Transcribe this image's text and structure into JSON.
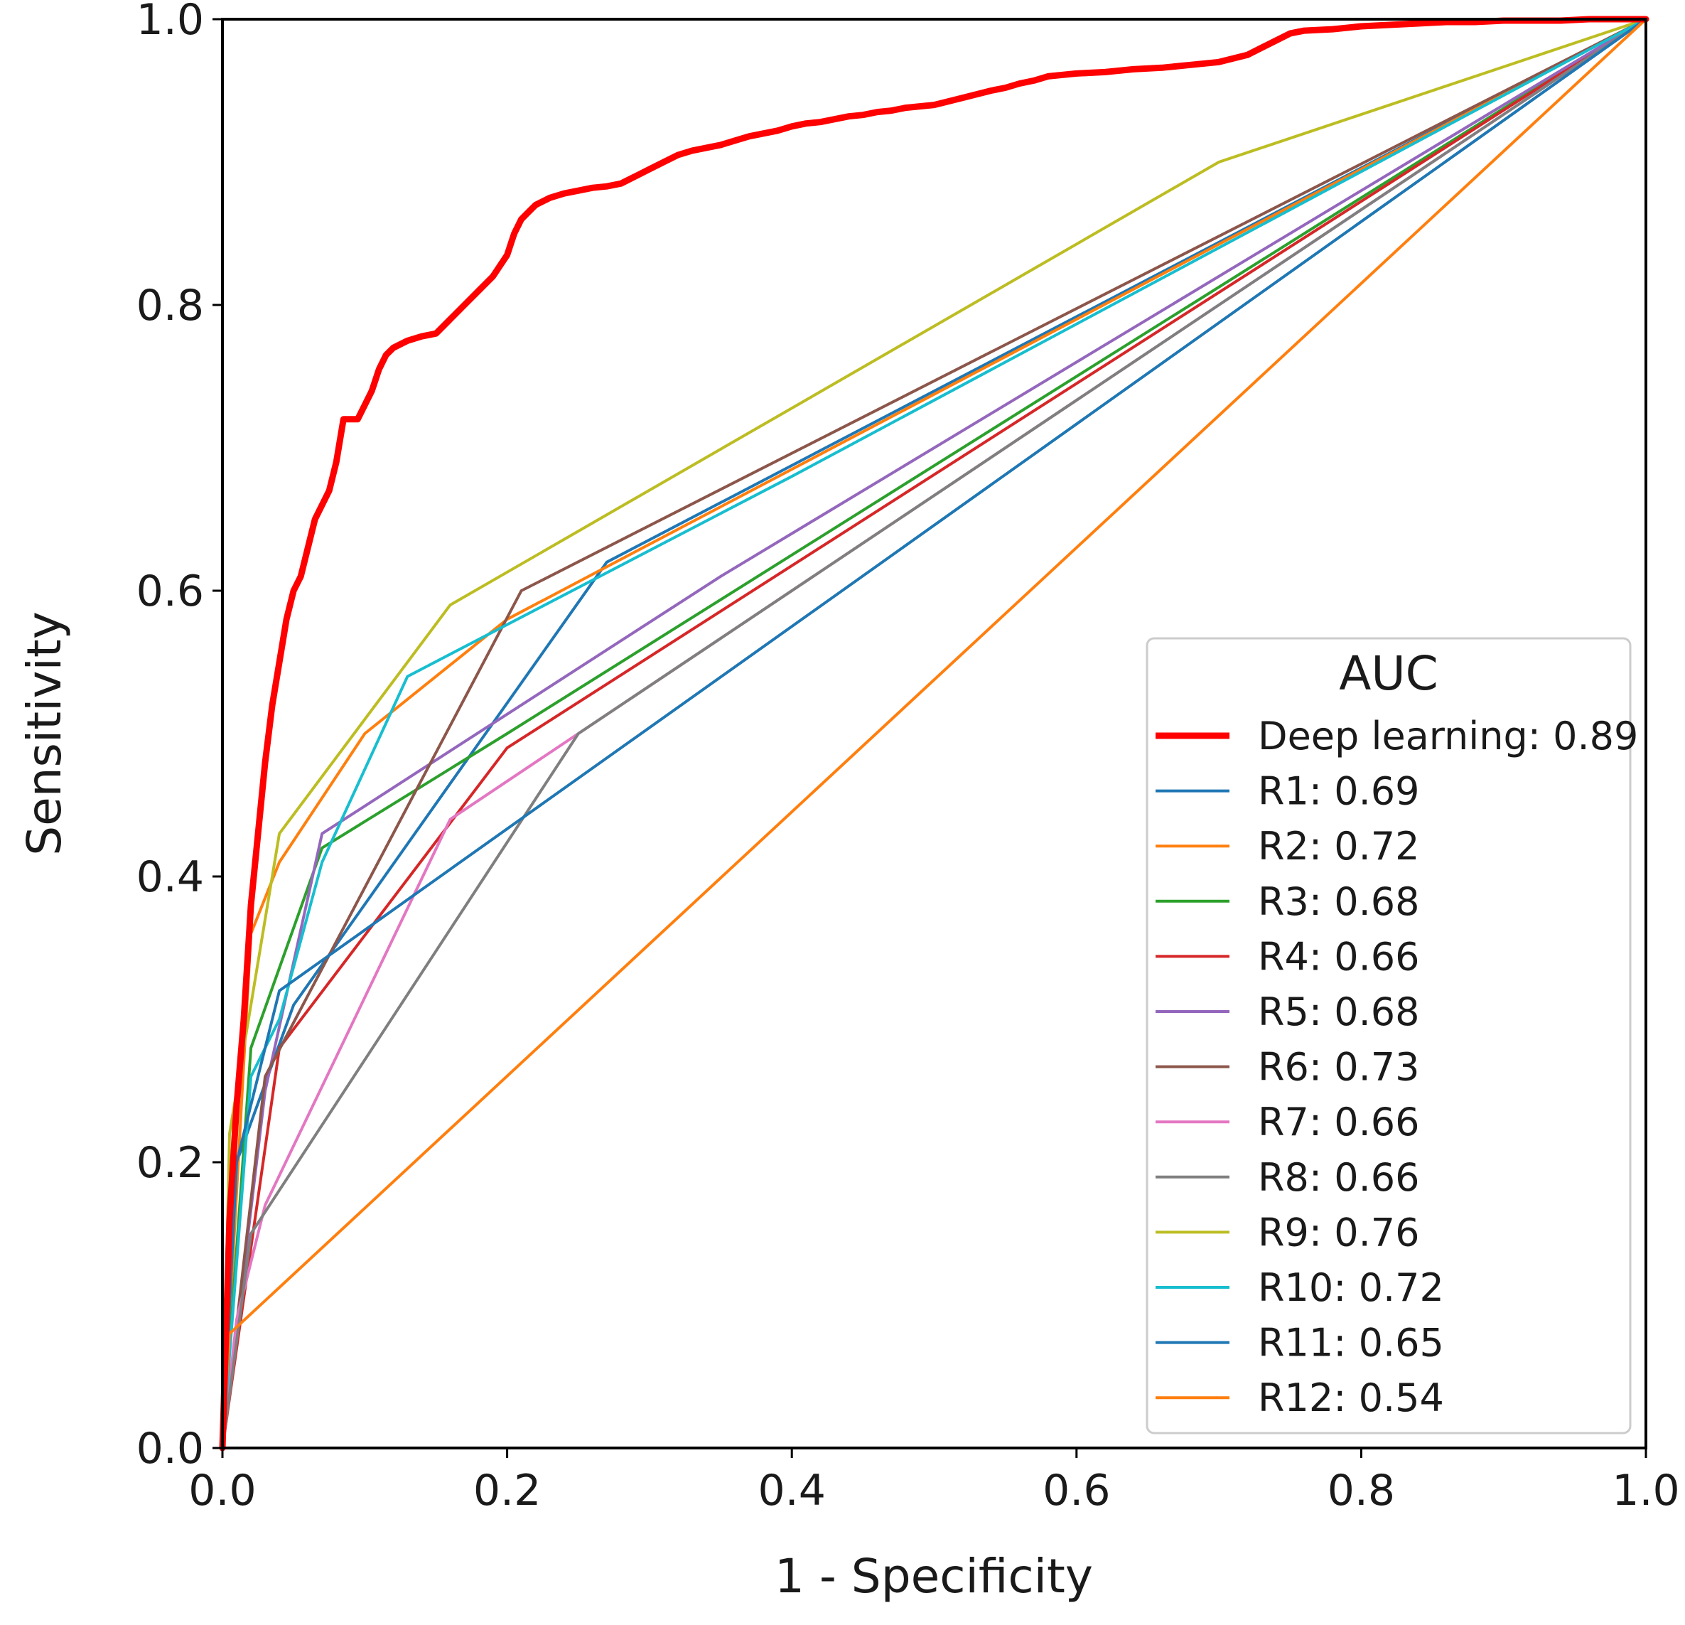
{
  "chart_data": {
    "type": "line",
    "title": "",
    "xlabel": "1 - Specificity",
    "ylabel": "Sensitivity",
    "xlim": [
      0.0,
      1.0
    ],
    "ylim": [
      0.0,
      1.0
    ],
    "x_ticks": [
      "0.0",
      "0.2",
      "0.4",
      "0.6",
      "0.8",
      "1.0"
    ],
    "y_ticks": [
      "0.0",
      "0.2",
      "0.4",
      "0.6",
      "0.8",
      "1.0"
    ],
    "grid": false,
    "legend": {
      "title": "AUC",
      "location": "lower right"
    },
    "series": [
      {
        "name": "Deep learning",
        "auc": "0.89",
        "label": "Deep learning: 0.89",
        "color": "#ff0000",
        "thick": true,
        "x": [
          0.0,
          0.005,
          0.01,
          0.015,
          0.02,
          0.025,
          0.03,
          0.035,
          0.04,
          0.045,
          0.05,
          0.055,
          0.06,
          0.065,
          0.07,
          0.075,
          0.08,
          0.085,
          0.09,
          0.095,
          0.1,
          0.105,
          0.11,
          0.115,
          0.12,
          0.13,
          0.14,
          0.15,
          0.16,
          0.17,
          0.18,
          0.19,
          0.2,
          0.205,
          0.21,
          0.215,
          0.22,
          0.23,
          0.24,
          0.25,
          0.26,
          0.27,
          0.28,
          0.29,
          0.3,
          0.31,
          0.32,
          0.33,
          0.34,
          0.35,
          0.36,
          0.37,
          0.38,
          0.39,
          0.4,
          0.41,
          0.42,
          0.43,
          0.44,
          0.45,
          0.46,
          0.47,
          0.48,
          0.5,
          0.52,
          0.54,
          0.55,
          0.56,
          0.57,
          0.58,
          0.6,
          0.62,
          0.64,
          0.66,
          0.68,
          0.7,
          0.72,
          0.73,
          0.74,
          0.75,
          0.76,
          0.78,
          0.8,
          0.82,
          0.84,
          0.86,
          0.88,
          0.9,
          0.92,
          0.94,
          0.96,
          0.98,
          1.0
        ],
        "y": [
          0.0,
          0.16,
          0.24,
          0.3,
          0.38,
          0.43,
          0.48,
          0.52,
          0.55,
          0.58,
          0.6,
          0.61,
          0.63,
          0.65,
          0.66,
          0.67,
          0.69,
          0.72,
          0.72,
          0.72,
          0.73,
          0.74,
          0.755,
          0.765,
          0.77,
          0.775,
          0.778,
          0.78,
          0.79,
          0.8,
          0.81,
          0.82,
          0.835,
          0.85,
          0.86,
          0.865,
          0.87,
          0.875,
          0.878,
          0.88,
          0.882,
          0.883,
          0.885,
          0.89,
          0.895,
          0.9,
          0.905,
          0.908,
          0.91,
          0.912,
          0.915,
          0.918,
          0.92,
          0.922,
          0.925,
          0.927,
          0.928,
          0.93,
          0.932,
          0.933,
          0.935,
          0.936,
          0.938,
          0.94,
          0.945,
          0.95,
          0.952,
          0.955,
          0.957,
          0.96,
          0.962,
          0.963,
          0.965,
          0.966,
          0.968,
          0.97,
          0.975,
          0.98,
          0.985,
          0.99,
          0.992,
          0.993,
          0.995,
          0.996,
          0.997,
          0.998,
          0.998,
          0.999,
          0.999,
          0.999,
          1.0,
          1.0,
          1.0
        ]
      },
      {
        "name": "R1",
        "auc": "0.69",
        "label": "R1: 0.69",
        "color": "#1f77b4",
        "x": [
          0.0,
          0.01,
          0.05,
          0.27,
          1.0
        ],
        "y": [
          0.0,
          0.2,
          0.31,
          0.62,
          1.0
        ]
      },
      {
        "name": "R2",
        "auc": "0.72",
        "label": "R2: 0.72",
        "color": "#ff7f0e",
        "x": [
          0.0,
          0.02,
          0.04,
          0.1,
          0.2,
          1.0
        ],
        "y": [
          0.0,
          0.36,
          0.41,
          0.5,
          0.58,
          1.0
        ]
      },
      {
        "name": "R3",
        "auc": "0.68",
        "label": "R3: 0.68",
        "color": "#2ca02c",
        "x": [
          0.0,
          0.02,
          0.07,
          0.2,
          1.0
        ],
        "y": [
          0.0,
          0.28,
          0.42,
          0.5,
          1.0
        ]
      },
      {
        "name": "R4",
        "auc": "0.66",
        "label": "R4: 0.66",
        "color": "#d62728",
        "x": [
          0.0,
          0.04,
          0.2,
          1.0
        ],
        "y": [
          0.0,
          0.28,
          0.49,
          1.0
        ]
      },
      {
        "name": "R5",
        "auc": "0.68",
        "label": "R5: 0.68",
        "color": "#9467bd",
        "x": [
          0.0,
          0.03,
          0.07,
          0.35,
          1.0
        ],
        "y": [
          0.0,
          0.25,
          0.43,
          0.61,
          1.0
        ]
      },
      {
        "name": "R6",
        "auc": "0.73",
        "label": "R6: 0.73",
        "color": "#8c564b",
        "x": [
          0.0,
          0.03,
          0.21,
          1.0
        ],
        "y": [
          0.0,
          0.26,
          0.6,
          1.0
        ]
      },
      {
        "name": "R7",
        "auc": "0.66",
        "label": "R7: 0.66",
        "color": "#e377c2",
        "x": [
          0.0,
          0.01,
          0.03,
          0.16,
          1.0
        ],
        "y": [
          0.0,
          0.09,
          0.17,
          0.44,
          1.0
        ]
      },
      {
        "name": "R8",
        "auc": "0.66",
        "label": "R8: 0.66",
        "color": "#7f7f7f",
        "x": [
          0.0,
          0.02,
          0.25,
          1.0
        ],
        "y": [
          0.0,
          0.15,
          0.5,
          1.0
        ]
      },
      {
        "name": "R9",
        "auc": "0.76",
        "label": "R9: 0.76",
        "color": "#bcbd22",
        "x": [
          0.0,
          0.005,
          0.04,
          0.16,
          0.7,
          1.0
        ],
        "y": [
          0.0,
          0.22,
          0.43,
          0.59,
          0.9,
          1.0
        ]
      },
      {
        "name": "R10",
        "auc": "0.72",
        "label": "R10: 0.72",
        "color": "#17becf",
        "x": [
          0.0,
          0.02,
          0.04,
          0.07,
          0.13,
          0.4,
          1.0
        ],
        "y": [
          0.0,
          0.26,
          0.3,
          0.41,
          0.54,
          0.68,
          1.0
        ]
      },
      {
        "name": "R11",
        "auc": "0.65",
        "label": "R11: 0.65",
        "color": "#1f77b4",
        "x": [
          0.0,
          0.01,
          0.04,
          1.0
        ],
        "y": [
          0.0,
          0.2,
          0.32,
          1.0
        ]
      },
      {
        "name": "R12",
        "auc": "0.54",
        "label": "R12: 0.54",
        "color": "#ff7f0e",
        "x": [
          0.0,
          0.005,
          1.0
        ],
        "y": [
          0.0,
          0.08,
          1.0
        ]
      }
    ]
  }
}
